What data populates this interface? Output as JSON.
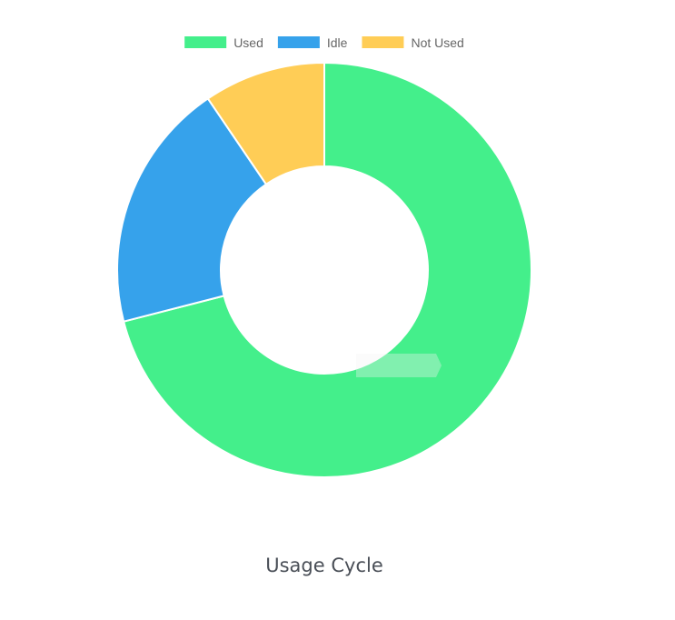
{
  "chart_data": {
    "type": "pie",
    "variant": "doughnut",
    "title": "Usage Cycle",
    "categories": [
      "Used",
      "Idle",
      "Not Used"
    ],
    "values": [
      71,
      19.5,
      9.5
    ],
    "colors": [
      "#44ef8b",
      "#36a2eb",
      "#ffcd56"
    ],
    "legend_position": "top",
    "start_angle_deg": -90
  }
}
